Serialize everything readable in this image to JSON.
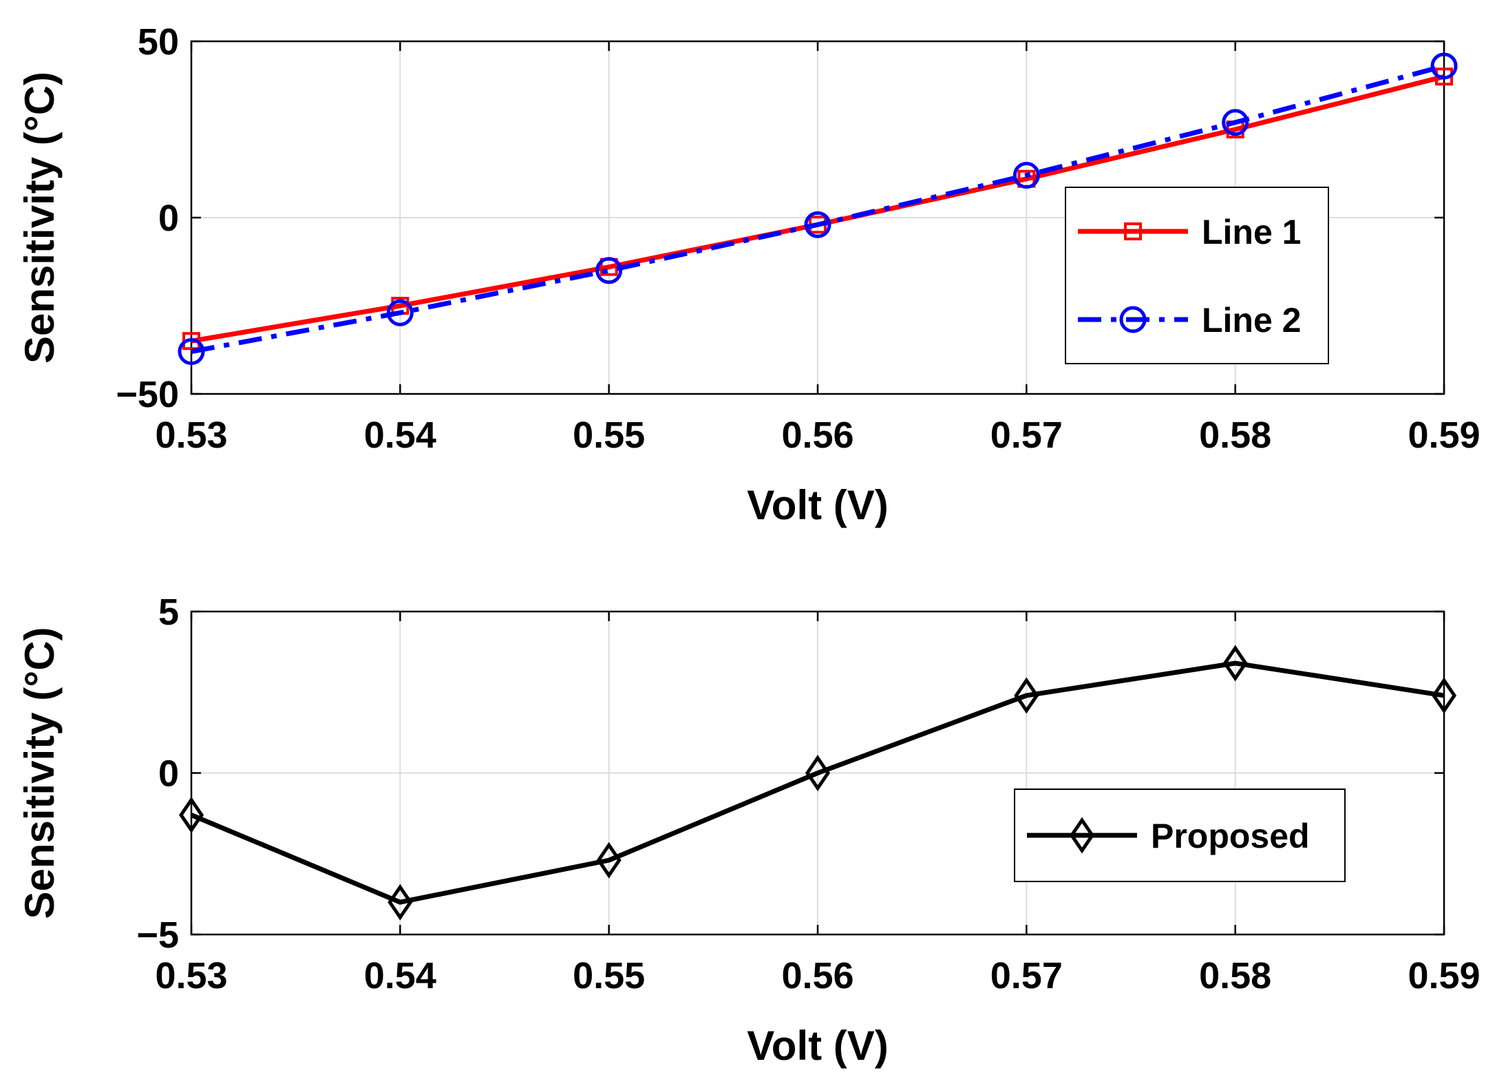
{
  "chart_data": [
    {
      "type": "line",
      "title": "",
      "xlabel": "Volt (V)",
      "ylabel": "Sensitivity (°C)",
      "xlim": [
        0.53,
        0.59
      ],
      "ylim": [
        -50,
        50
      ],
      "x": [
        0.53,
        0.54,
        0.55,
        0.56,
        0.57,
        0.58,
        0.59
      ],
      "xticks": [
        "0.53",
        "0.54",
        "0.55",
        "0.56",
        "0.57",
        "0.58",
        "0.59"
      ],
      "yticks": [
        {
          "value": 50,
          "label": "50"
        },
        {
          "value": 0,
          "label": "0"
        },
        {
          "value": -50,
          "label": "−50"
        }
      ],
      "grid": true,
      "legend_position": "center-right",
      "series": [
        {
          "name": "Line 1",
          "color": "#ff0000",
          "style": "solid",
          "marker": "square",
          "values": [
            -35,
            -25,
            -14,
            -2,
            11,
            25,
            40
          ]
        },
        {
          "name": "Line 2",
          "color": "#0000ff",
          "style": "dashdot",
          "marker": "circle",
          "values": [
            -38,
            -27,
            -15,
            -2,
            12,
            27,
            43
          ]
        }
      ]
    },
    {
      "type": "line",
      "title": "",
      "xlabel": "Volt (V)",
      "ylabel": "Sensitivity (°C)",
      "xlim": [
        0.53,
        0.59
      ],
      "ylim": [
        -5,
        5
      ],
      "x": [
        0.53,
        0.54,
        0.55,
        0.56,
        0.57,
        0.58,
        0.59
      ],
      "xticks": [
        "0.53",
        "0.54",
        "0.55",
        "0.56",
        "0.57",
        "0.58",
        "0.59"
      ],
      "yticks": [
        {
          "value": 5,
          "label": "5"
        },
        {
          "value": 0,
          "label": "0"
        },
        {
          "value": -5,
          "label": "−5"
        }
      ],
      "grid": true,
      "legend_position": "lower-right",
      "series": [
        {
          "name": "Proposed",
          "color": "#000000",
          "style": "solid",
          "marker": "diamond",
          "values": [
            -1.3,
            -4.0,
            -2.7,
            0.0,
            2.4,
            3.4,
            2.4
          ]
        }
      ]
    }
  ]
}
